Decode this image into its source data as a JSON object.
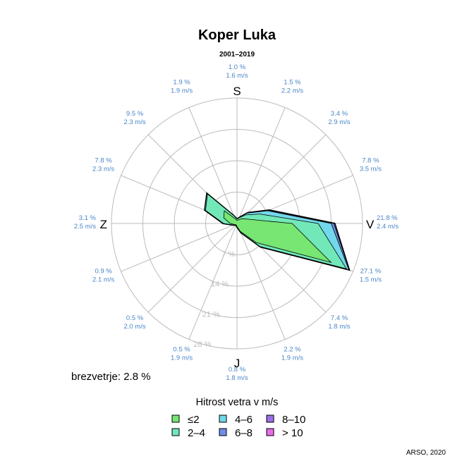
{
  "chart_data": {
    "type": "windrose",
    "title": "Koper Luka",
    "subtitle": "2001–2019",
    "cardinals": {
      "N": "S",
      "E": "V",
      "S": "J",
      "W": "Z"
    },
    "radial_ticks": [
      7,
      14,
      21,
      28
    ],
    "radial_tick_labels": [
      "7 %",
      "14 %",
      "21 %",
      "28 %"
    ],
    "rmax": 28,
    "directions": [
      {
        "dir": "N",
        "pct": "1.0 %",
        "speed": "1.6 m/s",
        "classes": [
          0.7,
          0.3,
          0,
          0,
          0,
          0
        ]
      },
      {
        "dir": "NNE",
        "pct": "1.5 %",
        "speed": "2.2 m/s",
        "classes": [
          0.9,
          0.5,
          0.1,
          0,
          0,
          0
        ]
      },
      {
        "dir": "NE",
        "pct": "3.4 %",
        "speed": "2.9 m/s",
        "classes": [
          1.5,
          1.2,
          0.6,
          0.1,
          0,
          0
        ]
      },
      {
        "dir": "ENE",
        "pct": "7.8 %",
        "speed": "3.5 m/s",
        "classes": [
          2.5,
          3.0,
          1.9,
          0.3,
          0.1,
          0
        ]
      },
      {
        "dir": "E",
        "pct": "21.8 %",
        "speed": "2.4 m/s",
        "classes": [
          12.3,
          5.8,
          2.9,
          0.6,
          0.2,
          0
        ]
      },
      {
        "dir": "ESE",
        "pct": "27.1 %",
        "speed": "1.5 m/s",
        "classes": [
          22.7,
          3.7,
          0.6,
          0.1,
          0,
          0
        ]
      },
      {
        "dir": "SE",
        "pct": "7.4 %",
        "speed": "1.8 m/s",
        "classes": [
          6.0,
          1.3,
          0.1,
          0,
          0,
          0
        ]
      },
      {
        "dir": "SSE",
        "pct": "2.2 %",
        "speed": "1.9 m/s",
        "classes": [
          1.9,
          0.3,
          0,
          0,
          0,
          0
        ]
      },
      {
        "dir": "S",
        "pct": "0.8 %",
        "speed": "1.8 m/s",
        "classes": [
          0.7,
          0.1,
          0,
          0,
          0,
          0
        ]
      },
      {
        "dir": "SSW",
        "pct": "0.5 %",
        "speed": "1.9 m/s",
        "classes": [
          0.4,
          0.1,
          0,
          0,
          0,
          0
        ]
      },
      {
        "dir": "SW",
        "pct": "0.5 %",
        "speed": "2.0 m/s",
        "classes": [
          0.4,
          0.1,
          0,
          0,
          0,
          0
        ]
      },
      {
        "dir": "WSW",
        "pct": "0.9 %",
        "speed": "2.1 m/s",
        "classes": [
          0.6,
          0.3,
          0,
          0,
          0,
          0
        ]
      },
      {
        "dir": "W",
        "pct": "3.1 %",
        "speed": "2.5 m/s",
        "classes": [
          1.5,
          1.5,
          0.1,
          0,
          0,
          0
        ]
      },
      {
        "dir": "WNW",
        "pct": "7.8 %",
        "speed": "2.3 m/s",
        "classes": [
          3.2,
          4.4,
          0.2,
          0,
          0,
          0
        ]
      },
      {
        "dir": "NW",
        "pct": "9.5 %",
        "speed": "2.3 m/s",
        "classes": [
          4.0,
          5.3,
          0.2,
          0,
          0,
          0
        ]
      },
      {
        "dir": "NNW",
        "pct": "1.9 %",
        "speed": "1.9 m/s",
        "classes": [
          1.2,
          0.7,
          0,
          0,
          0,
          0
        ]
      }
    ],
    "calm": "brezvetrje: 2.8 %",
    "legend": {
      "title": "Hitrost vetra v m/s",
      "placement": "bottom",
      "items": [
        {
          "label": "≤2",
          "color": "#77e672"
        },
        {
          "label": "2–4",
          "color": "#72e8b8"
        },
        {
          "label": "4–6",
          "color": "#72d8eb"
        },
        {
          "label": "6–8",
          "color": "#6e8fe8"
        },
        {
          "label": "8–10",
          "color": "#9b6ee8"
        },
        {
          "label": "> 10",
          "color": "#e66ee8"
        }
      ]
    },
    "credit": "ARSO, 2020"
  }
}
